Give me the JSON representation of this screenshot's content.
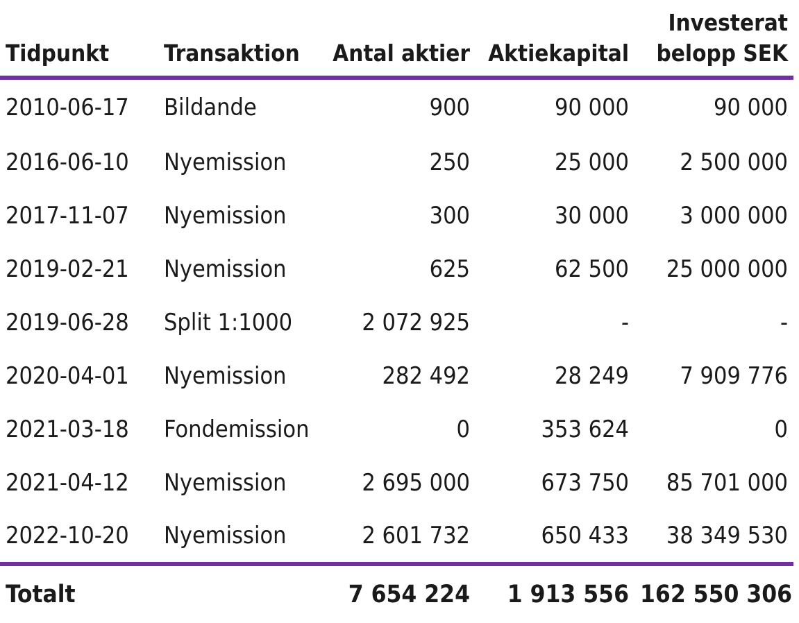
{
  "table": {
    "headers": {
      "date": "Tidpunkt",
      "transaction": "Transaktion",
      "shares": "Antal aktier",
      "capital": "Aktiekapital",
      "invested_line1": "Investerat",
      "invested_line2": "belopp SEK"
    },
    "rows": [
      {
        "date": "2010-06-17",
        "transaction": "Bildande",
        "shares": "900",
        "capital": "90 000",
        "invested": "90 000"
      },
      {
        "date": "2016-06-10",
        "transaction": "Nyemission",
        "shares": "250",
        "capital": "25 000",
        "invested": "2 500 000"
      },
      {
        "date": "2017-11-07",
        "transaction": "Nyemission",
        "shares": "300",
        "capital": "30 000",
        "invested": "3 000 000"
      },
      {
        "date": "2019-02-21",
        "transaction": "Nyemission",
        "shares": "625",
        "capital": "62 500",
        "invested": "25 000 000"
      },
      {
        "date": "2019-06-28",
        "transaction": "Split 1:1000",
        "shares": "2 072 925",
        "capital": "-",
        "invested": "-"
      },
      {
        "date": "2020-04-01",
        "transaction": "Nyemission",
        "shares": "282 492",
        "capital": "28 249",
        "invested": "7 909 776"
      },
      {
        "date": "2021-03-18",
        "transaction": "Fondemission",
        "shares": "0",
        "capital": "353 624",
        "invested": "0"
      },
      {
        "date": "2021-04-12",
        "transaction": "Nyemission",
        "shares": "2 695 000",
        "capital": "673 750",
        "invested": "85 701 000"
      },
      {
        "date": "2022-10-20",
        "transaction": "Nyemission",
        "shares": "2 601 732",
        "capital": "650 433",
        "invested": "38 349 530"
      }
    ],
    "totals": {
      "label": "Totalt",
      "shares": "7 654 224",
      "capital": "1 913 556",
      "invested": "162 550 306"
    },
    "accent_color": "#7030a0"
  }
}
